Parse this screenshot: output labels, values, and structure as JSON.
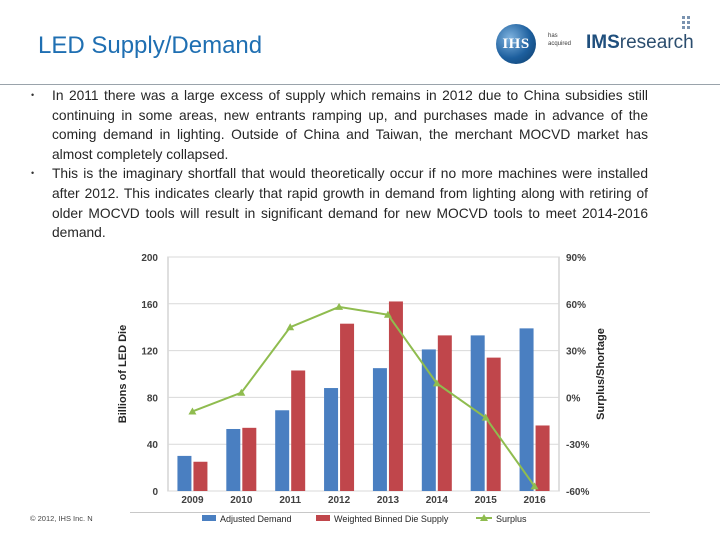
{
  "slide": {
    "title": "LED Supply/Demand",
    "bullets": [
      "In 2011 there was a large excess of supply which remains in 2012 due to China subsidies still continuing in some areas, new entrants ramping up, and purchases made in advance of the coming demand in lighting. Outside of China and Taiwan, the merchant MOCVD market has almost completely collapsed.",
      "This is the imaginary shortfall that would theoretically occur if no more machines were installed after 2012. This indicates clearly that rapid growth in demand from lighting along with retiring of older MOCVD tools will result in significant demand for new MOCVD tools to meet 2014-2016 demand."
    ],
    "bullet_marker": "•",
    "footer": "© 2012, IHS Inc. N"
  },
  "logos": {
    "ihs": "IHS",
    "has_acquired": "has acquired",
    "ims_prefix": "IMS",
    "ims_suffix": "research"
  },
  "colors": {
    "title": "#1f6fb2",
    "demand": "#4a7fc1",
    "supply": "#c0464b",
    "surplus": "#8fbc4f"
  },
  "chart_data": {
    "type": "bar",
    "categories": [
      "2009",
      "2010",
      "2011",
      "2012",
      "2013",
      "2014",
      "2015",
      "2016"
    ],
    "series": [
      {
        "name": "Adjusted Demand",
        "type": "bar",
        "axis": "left",
        "values": [
          30,
          53,
          69,
          88,
          105,
          121,
          133,
          139
        ]
      },
      {
        "name": "Weighted Binned Die Supply",
        "type": "bar",
        "axis": "left",
        "values": [
          25,
          54,
          103,
          143,
          162,
          133,
          114,
          56
        ]
      },
      {
        "name": "Surplus",
        "type": "line",
        "axis": "right",
        "values": [
          -9,
          3,
          45,
          58,
          53,
          9,
          -13,
          -57
        ]
      }
    ],
    "ylabel": "Billions of LED Die",
    "ylabel_right": "Surplus/Shortage",
    "ylim": [
      0,
      200
    ],
    "yticks": [
      0,
      40,
      80,
      120,
      160,
      200
    ],
    "ylim_right": [
      -60,
      90
    ],
    "yticks_right": [
      -60,
      -30,
      0,
      30,
      60,
      90
    ],
    "ytick_labels_right": [
      "-60%",
      "-30%",
      "0%",
      "30%",
      "60%",
      "90%"
    ],
    "legend": "bottom"
  }
}
